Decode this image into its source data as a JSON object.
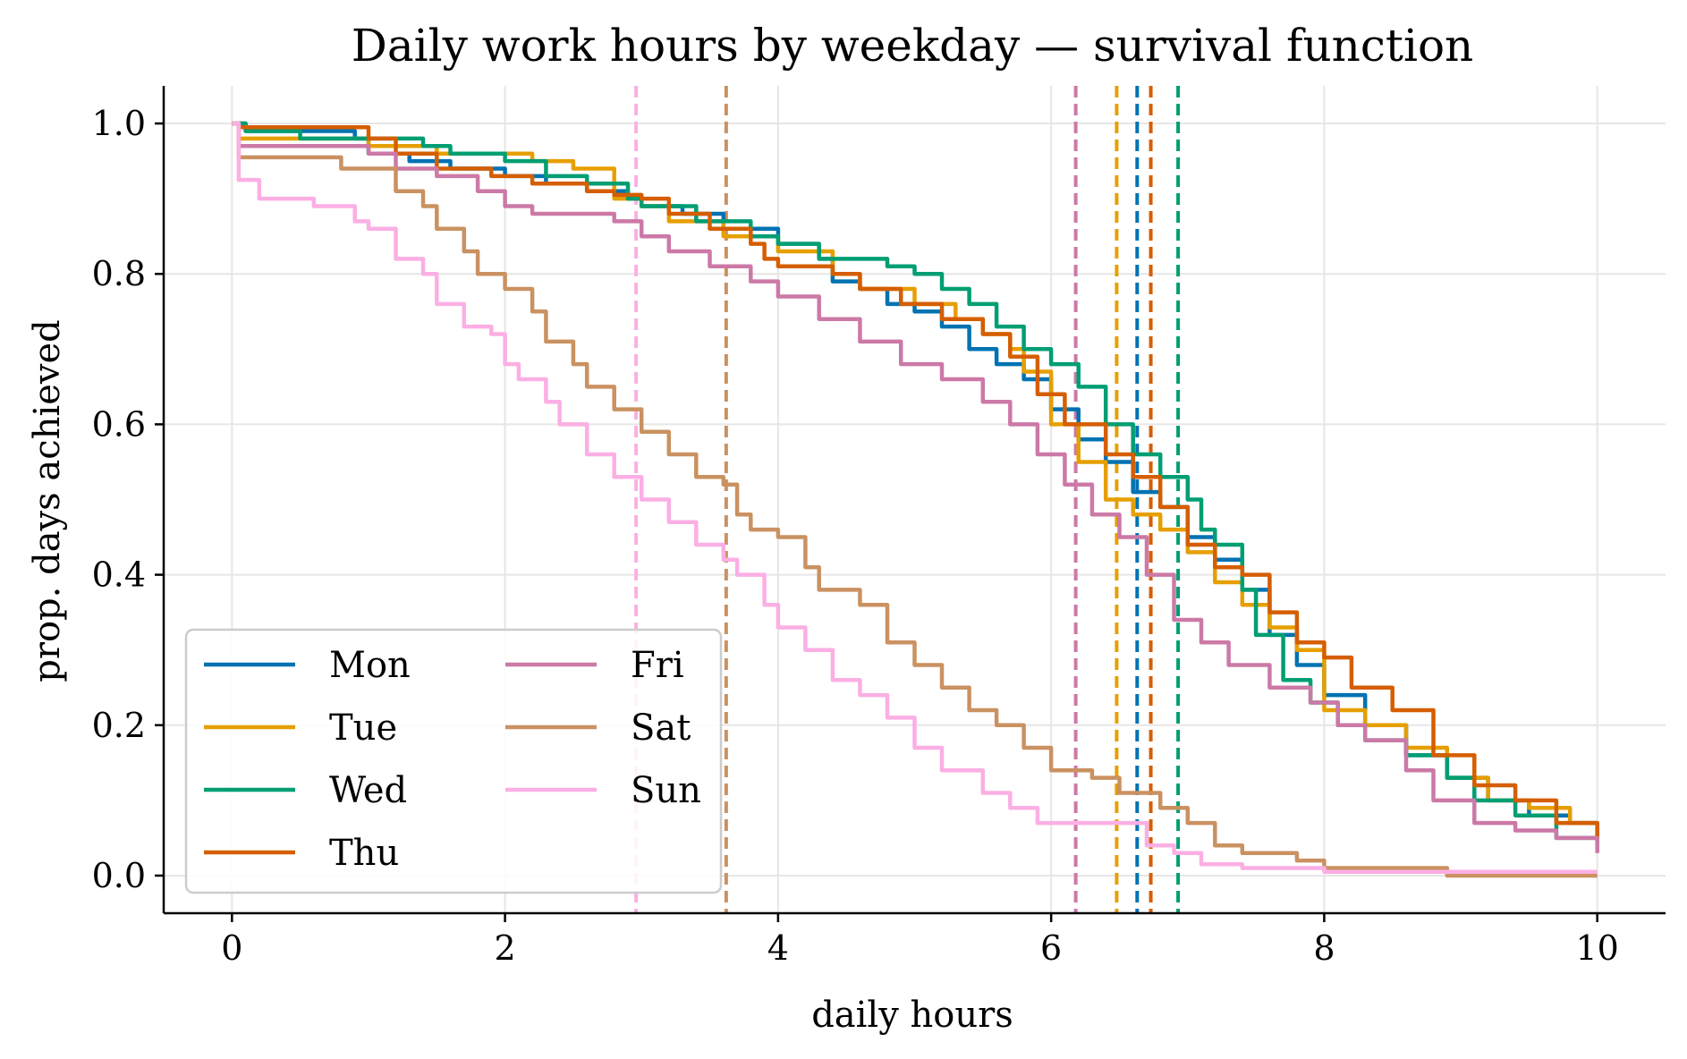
{
  "chart_data": {
    "type": "line",
    "title": "Daily work hours by weekday — survival function",
    "xlabel": "daily hours",
    "ylabel": "prop. days achieved",
    "xlim": [
      -0.5,
      10.5
    ],
    "ylim": [
      -0.05,
      1.05
    ],
    "xticks": [
      0,
      2,
      4,
      6,
      8,
      10
    ],
    "xtick_labels": [
      "0",
      "2",
      "4",
      "6",
      "8",
      "10"
    ],
    "yticks": [
      0.0,
      0.2,
      0.4,
      0.6,
      0.8,
      1.0
    ],
    "ytick_labels": [
      "0.0",
      "0.2",
      "0.4",
      "0.6",
      "0.8",
      "1.0"
    ],
    "grid": true,
    "legend_position": "lower-left",
    "legend_columns": 2,
    "series": [
      {
        "name": "Mon",
        "color": "#0072b2",
        "median": 6.63,
        "points": [
          [
            0,
            1.0
          ],
          [
            0.1,
            0.99
          ],
          [
            0.5,
            0.99
          ],
          [
            0.9,
            0.98
          ],
          [
            1.0,
            0.96
          ],
          [
            1.3,
            0.95
          ],
          [
            1.6,
            0.94
          ],
          [
            2.0,
            0.93
          ],
          [
            2.3,
            0.92
          ],
          [
            2.6,
            0.91
          ],
          [
            2.9,
            0.9
          ],
          [
            3.0,
            0.89
          ],
          [
            3.3,
            0.88
          ],
          [
            3.6,
            0.86
          ],
          [
            4.0,
            0.84
          ],
          [
            4.3,
            0.82
          ],
          [
            4.4,
            0.79
          ],
          [
            4.6,
            0.78
          ],
          [
            4.8,
            0.76
          ],
          [
            5.0,
            0.75
          ],
          [
            5.2,
            0.73
          ],
          [
            5.4,
            0.7
          ],
          [
            5.6,
            0.68
          ],
          [
            5.8,
            0.66
          ],
          [
            6.0,
            0.62
          ],
          [
            6.2,
            0.58
          ],
          [
            6.4,
            0.55
          ],
          [
            6.6,
            0.51
          ],
          [
            6.8,
            0.49
          ],
          [
            7.0,
            0.45
          ],
          [
            7.2,
            0.42
          ],
          [
            7.4,
            0.38
          ],
          [
            7.6,
            0.32
          ],
          [
            7.8,
            0.28
          ],
          [
            8.0,
            0.24
          ],
          [
            8.3,
            0.2
          ],
          [
            8.6,
            0.16
          ],
          [
            8.9,
            0.13
          ],
          [
            9.2,
            0.1
          ],
          [
            9.5,
            0.08
          ],
          [
            9.8,
            0.07
          ],
          [
            10.0,
            0.065
          ]
        ]
      },
      {
        "name": "Tue",
        "color": "#e69f00",
        "median": 6.48,
        "points": [
          [
            0,
            1.0
          ],
          [
            0.05,
            0.98
          ],
          [
            0.6,
            0.98
          ],
          [
            1.0,
            0.97
          ],
          [
            1.5,
            0.96
          ],
          [
            1.8,
            0.96
          ],
          [
            2.2,
            0.95
          ],
          [
            2.5,
            0.94
          ],
          [
            2.6,
            0.94
          ],
          [
            2.8,
            0.9
          ],
          [
            3.0,
            0.89
          ],
          [
            3.2,
            0.87
          ],
          [
            3.6,
            0.85
          ],
          [
            4.0,
            0.83
          ],
          [
            4.2,
            0.83
          ],
          [
            4.4,
            0.8
          ],
          [
            4.6,
            0.78
          ],
          [
            5.0,
            0.76
          ],
          [
            5.3,
            0.74
          ],
          [
            5.5,
            0.72
          ],
          [
            5.7,
            0.7
          ],
          [
            5.8,
            0.67
          ],
          [
            6.0,
            0.6
          ],
          [
            6.2,
            0.55
          ],
          [
            6.4,
            0.5
          ],
          [
            6.6,
            0.48
          ],
          [
            6.8,
            0.46
          ],
          [
            7.0,
            0.43
          ],
          [
            7.2,
            0.39
          ],
          [
            7.4,
            0.36
          ],
          [
            7.6,
            0.33
          ],
          [
            7.8,
            0.3
          ],
          [
            8.0,
            0.22
          ],
          [
            8.3,
            0.2
          ],
          [
            8.6,
            0.17
          ],
          [
            8.9,
            0.13
          ],
          [
            9.2,
            0.1
          ],
          [
            9.5,
            0.09
          ],
          [
            9.8,
            0.07
          ],
          [
            10.0,
            0.04
          ]
        ]
      },
      {
        "name": "Wed",
        "color": "#009e73",
        "median": 6.93,
        "points": [
          [
            0,
            1.0
          ],
          [
            0.1,
            0.99
          ],
          [
            0.5,
            0.98
          ],
          [
            1.0,
            0.98
          ],
          [
            1.4,
            0.97
          ],
          [
            1.6,
            0.96
          ],
          [
            2.0,
            0.95
          ],
          [
            2.3,
            0.93
          ],
          [
            2.6,
            0.92
          ],
          [
            2.9,
            0.9
          ],
          [
            3.0,
            0.89
          ],
          [
            3.4,
            0.87
          ],
          [
            3.8,
            0.85
          ],
          [
            4.0,
            0.84
          ],
          [
            4.3,
            0.82
          ],
          [
            4.6,
            0.82
          ],
          [
            4.8,
            0.81
          ],
          [
            5.0,
            0.8
          ],
          [
            5.2,
            0.78
          ],
          [
            5.4,
            0.76
          ],
          [
            5.6,
            0.73
          ],
          [
            5.8,
            0.7
          ],
          [
            6.0,
            0.68
          ],
          [
            6.2,
            0.65
          ],
          [
            6.4,
            0.6
          ],
          [
            6.6,
            0.56
          ],
          [
            6.8,
            0.53
          ],
          [
            7.0,
            0.5
          ],
          [
            7.1,
            0.46
          ],
          [
            7.2,
            0.44
          ],
          [
            7.4,
            0.38
          ],
          [
            7.5,
            0.32
          ],
          [
            7.7,
            0.26
          ],
          [
            7.9,
            0.23
          ],
          [
            8.1,
            0.2
          ],
          [
            8.3,
            0.18
          ],
          [
            8.6,
            0.16
          ],
          [
            8.9,
            0.13
          ],
          [
            9.1,
            0.1
          ],
          [
            9.4,
            0.08
          ],
          [
            9.7,
            0.05
          ],
          [
            10.0,
            0.04
          ]
        ]
      },
      {
        "name": "Thu",
        "color": "#d55e00",
        "median": 6.73,
        "points": [
          [
            0,
            1.0
          ],
          [
            0.05,
            0.995
          ],
          [
            0.9,
            0.995
          ],
          [
            1.0,
            0.98
          ],
          [
            1.2,
            0.96
          ],
          [
            1.5,
            0.94
          ],
          [
            1.9,
            0.93
          ],
          [
            2.2,
            0.92
          ],
          [
            2.6,
            0.91
          ],
          [
            2.8,
            0.905
          ],
          [
            3.0,
            0.9
          ],
          [
            3.2,
            0.88
          ],
          [
            3.5,
            0.86
          ],
          [
            3.8,
            0.84
          ],
          [
            3.9,
            0.82
          ],
          [
            4.0,
            0.81
          ],
          [
            4.2,
            0.81
          ],
          [
            4.4,
            0.8
          ],
          [
            4.6,
            0.78
          ],
          [
            4.9,
            0.76
          ],
          [
            5.2,
            0.74
          ],
          [
            5.5,
            0.72
          ],
          [
            5.7,
            0.69
          ],
          [
            5.9,
            0.64
          ],
          [
            6.1,
            0.6
          ],
          [
            6.4,
            0.56
          ],
          [
            6.6,
            0.53
          ],
          [
            6.8,
            0.49
          ],
          [
            7.0,
            0.44
          ],
          [
            7.2,
            0.41
          ],
          [
            7.4,
            0.4
          ],
          [
            7.6,
            0.35
          ],
          [
            7.8,
            0.31
          ],
          [
            8.0,
            0.29
          ],
          [
            8.2,
            0.25
          ],
          [
            8.5,
            0.22
          ],
          [
            8.8,
            0.16
          ],
          [
            9.1,
            0.12
          ],
          [
            9.4,
            0.1
          ],
          [
            9.7,
            0.07
          ],
          [
            10.0,
            0.05
          ]
        ]
      },
      {
        "name": "Fri",
        "color": "#cc79a7",
        "median": 6.18,
        "points": [
          [
            0,
            1.0
          ],
          [
            0.05,
            0.97
          ],
          [
            0.5,
            0.97
          ],
          [
            1.0,
            0.96
          ],
          [
            1.2,
            0.94
          ],
          [
            1.5,
            0.93
          ],
          [
            1.8,
            0.91
          ],
          [
            2.0,
            0.89
          ],
          [
            2.2,
            0.88
          ],
          [
            2.6,
            0.88
          ],
          [
            2.8,
            0.87
          ],
          [
            3.0,
            0.85
          ],
          [
            3.2,
            0.83
          ],
          [
            3.5,
            0.81
          ],
          [
            3.8,
            0.79
          ],
          [
            4.0,
            0.77
          ],
          [
            4.3,
            0.74
          ],
          [
            4.6,
            0.71
          ],
          [
            4.9,
            0.68
          ],
          [
            5.2,
            0.66
          ],
          [
            5.5,
            0.63
          ],
          [
            5.7,
            0.6
          ],
          [
            5.9,
            0.56
          ],
          [
            6.1,
            0.52
          ],
          [
            6.3,
            0.48
          ],
          [
            6.5,
            0.45
          ],
          [
            6.7,
            0.4
          ],
          [
            6.9,
            0.34
          ],
          [
            7.1,
            0.31
          ],
          [
            7.3,
            0.28
          ],
          [
            7.6,
            0.25
          ],
          [
            7.9,
            0.23
          ],
          [
            8.1,
            0.2
          ],
          [
            8.3,
            0.18
          ],
          [
            8.6,
            0.14
          ],
          [
            8.8,
            0.1
          ],
          [
            9.1,
            0.07
          ],
          [
            9.4,
            0.06
          ],
          [
            9.7,
            0.05
          ],
          [
            10.0,
            0.03
          ]
        ]
      },
      {
        "name": "Sat",
        "color": "#ca9161",
        "median": 3.62,
        "points": [
          [
            0,
            1.0
          ],
          [
            0.05,
            0.955
          ],
          [
            0.6,
            0.955
          ],
          [
            0.8,
            0.94
          ],
          [
            1.2,
            0.91
          ],
          [
            1.4,
            0.89
          ],
          [
            1.5,
            0.86
          ],
          [
            1.7,
            0.83
          ],
          [
            1.8,
            0.8
          ],
          [
            2.0,
            0.78
          ],
          [
            2.2,
            0.75
          ],
          [
            2.3,
            0.71
          ],
          [
            2.5,
            0.68
          ],
          [
            2.6,
            0.65
          ],
          [
            2.8,
            0.62
          ],
          [
            3.0,
            0.59
          ],
          [
            3.2,
            0.56
          ],
          [
            3.4,
            0.53
          ],
          [
            3.6,
            0.52
          ],
          [
            3.7,
            0.48
          ],
          [
            3.8,
            0.46
          ],
          [
            4.0,
            0.45
          ],
          [
            4.2,
            0.41
          ],
          [
            4.3,
            0.38
          ],
          [
            4.6,
            0.36
          ],
          [
            4.8,
            0.31
          ],
          [
            5.0,
            0.28
          ],
          [
            5.2,
            0.25
          ],
          [
            5.4,
            0.22
          ],
          [
            5.6,
            0.2
          ],
          [
            5.8,
            0.17
          ],
          [
            6.0,
            0.14
          ],
          [
            6.3,
            0.13
          ],
          [
            6.5,
            0.11
          ],
          [
            6.8,
            0.09
          ],
          [
            7.0,
            0.07
          ],
          [
            7.2,
            0.04
          ],
          [
            7.4,
            0.03
          ],
          [
            7.8,
            0.02
          ],
          [
            8.0,
            0.01
          ],
          [
            8.9,
            0.0
          ],
          [
            10.0,
            0.0
          ]
        ]
      },
      {
        "name": "Sun",
        "color": "#fbafe4",
        "median": 2.96,
        "points": [
          [
            0,
            1.0
          ],
          [
            0.05,
            0.925
          ],
          [
            0.2,
            0.9
          ],
          [
            0.6,
            0.89
          ],
          [
            0.9,
            0.87
          ],
          [
            1.0,
            0.86
          ],
          [
            1.2,
            0.82
          ],
          [
            1.4,
            0.8
          ],
          [
            1.5,
            0.76
          ],
          [
            1.7,
            0.73
          ],
          [
            1.9,
            0.72
          ],
          [
            2.0,
            0.68
          ],
          [
            2.1,
            0.66
          ],
          [
            2.3,
            0.63
          ],
          [
            2.4,
            0.6
          ],
          [
            2.6,
            0.56
          ],
          [
            2.8,
            0.53
          ],
          [
            3.0,
            0.5
          ],
          [
            3.2,
            0.47
          ],
          [
            3.4,
            0.44
          ],
          [
            3.6,
            0.42
          ],
          [
            3.7,
            0.4
          ],
          [
            3.9,
            0.36
          ],
          [
            4.0,
            0.33
          ],
          [
            4.2,
            0.3
          ],
          [
            4.4,
            0.26
          ],
          [
            4.6,
            0.24
          ],
          [
            4.8,
            0.21
          ],
          [
            5.0,
            0.17
          ],
          [
            5.2,
            0.14
          ],
          [
            5.5,
            0.11
          ],
          [
            5.7,
            0.09
          ],
          [
            5.9,
            0.07
          ],
          [
            6.5,
            0.07
          ],
          [
            6.7,
            0.04
          ],
          [
            6.9,
            0.03
          ],
          [
            7.1,
            0.015
          ],
          [
            7.4,
            0.01
          ],
          [
            8.0,
            0.005
          ],
          [
            10.0,
            0.005
          ]
        ]
      }
    ]
  }
}
